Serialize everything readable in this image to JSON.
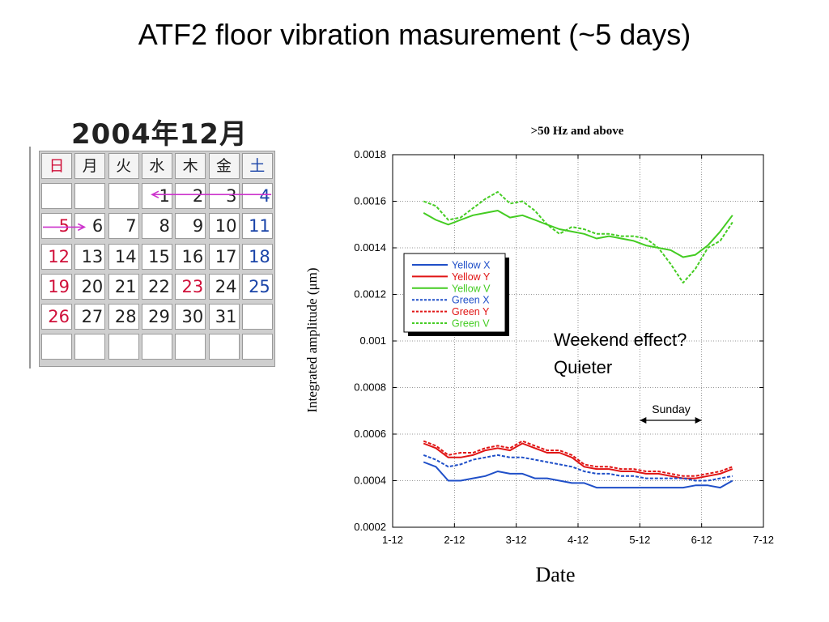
{
  "slide": {
    "title": "ATF2 floor vibration masurement (~5 days)"
  },
  "calendar": {
    "title": "2004年12月",
    "weekdays": [
      "日",
      "月",
      "火",
      "水",
      "木",
      "金",
      "土"
    ],
    "weeks": [
      [
        "",
        "",
        "",
        "1",
        "2",
        "3",
        "4"
      ],
      [
        "5",
        "6",
        "7",
        "8",
        "9",
        "10",
        "11"
      ],
      [
        "12",
        "13",
        "14",
        "15",
        "16",
        "17",
        "18"
      ],
      [
        "19",
        "20",
        "21",
        "22",
        "23",
        "24",
        "25"
      ],
      [
        "26",
        "27",
        "28",
        "29",
        "30",
        "31",
        ""
      ],
      [
        "",
        "",
        "",
        "",
        "",
        "",
        ""
      ]
    ],
    "holidays": [
      "23"
    ],
    "colors": {
      "sunday": "#d0103a",
      "saturday": "#1a44a8",
      "arrow": "#cc33cc"
    }
  },
  "chart_data": {
    "type": "line",
    "title": ">50 Hz and above",
    "xlabel": "Date",
    "ylabel": "Integrated amplitude (μm)",
    "x_ticks": [
      "1-12",
      "2-12",
      "3-12",
      "4-12",
      "5-12",
      "6-12",
      "7-12"
    ],
    "y_ticks": [
      "0.0002",
      "0.0004",
      "0.0006",
      "0.0008",
      "0.001",
      "0.0012",
      "0.0014",
      "0.0016",
      "0.0018"
    ],
    "ylim": [
      0.0002,
      0.0018
    ],
    "grid": true,
    "legend_position": "upper-left",
    "x": [
      1.5,
      1.7,
      1.9,
      2.1,
      2.3,
      2.5,
      2.7,
      2.9,
      3.1,
      3.3,
      3.5,
      3.7,
      3.9,
      4.1,
      4.3,
      4.5,
      4.7,
      4.9,
      5.1,
      5.3,
      5.5,
      5.7,
      5.9,
      6.1,
      6.3,
      6.5
    ],
    "series": [
      {
        "name": "Yellow X",
        "color": "#1f4fc8",
        "dash": "solid",
        "values": [
          0.00048,
          0.00046,
          0.0004,
          0.0004,
          0.00041,
          0.00042,
          0.00044,
          0.00043,
          0.00043,
          0.00041,
          0.00041,
          0.0004,
          0.00039,
          0.00039,
          0.00037,
          0.00037,
          0.00037,
          0.00037,
          0.00037,
          0.00037,
          0.00037,
          0.00037,
          0.00038,
          0.00038,
          0.00037,
          0.0004
        ]
      },
      {
        "name": "Yellow Y",
        "color": "#e01414",
        "dash": "solid",
        "values": [
          0.00056,
          0.00054,
          0.0005,
          0.0005,
          0.00051,
          0.00053,
          0.00054,
          0.00053,
          0.00056,
          0.00054,
          0.00052,
          0.00052,
          0.0005,
          0.00046,
          0.00045,
          0.00045,
          0.00044,
          0.00044,
          0.00043,
          0.00043,
          0.00042,
          0.00041,
          0.00041,
          0.00042,
          0.00043,
          0.00045
        ]
      },
      {
        "name": "Yellow V",
        "color": "#44cc22",
        "dash": "solid",
        "values": [
          0.00155,
          0.00152,
          0.0015,
          0.00152,
          0.00154,
          0.00155,
          0.00156,
          0.00153,
          0.00154,
          0.00152,
          0.0015,
          0.00148,
          0.00147,
          0.00146,
          0.00144,
          0.00145,
          0.00144,
          0.00143,
          0.00141,
          0.0014,
          0.00139,
          0.00136,
          0.00137,
          0.00141,
          0.00147,
          0.00154
        ]
      },
      {
        "name": "Green X",
        "color": "#1f4fc8",
        "dash": "4,2",
        "values": [
          0.00051,
          0.00049,
          0.00046,
          0.00047,
          0.00049,
          0.0005,
          0.00051,
          0.0005,
          0.0005,
          0.00049,
          0.00048,
          0.00047,
          0.00046,
          0.00044,
          0.00043,
          0.00043,
          0.00042,
          0.00042,
          0.00041,
          0.00041,
          0.00041,
          0.00041,
          0.0004,
          0.0004,
          0.00041,
          0.00042
        ]
      },
      {
        "name": "Green Y",
        "color": "#e01414",
        "dash": "4,2",
        "values": [
          0.00057,
          0.00055,
          0.00051,
          0.00052,
          0.00052,
          0.00054,
          0.00055,
          0.00054,
          0.00057,
          0.00055,
          0.00053,
          0.00053,
          0.00051,
          0.00047,
          0.00046,
          0.00046,
          0.00045,
          0.00045,
          0.00044,
          0.00044,
          0.00043,
          0.00042,
          0.00042,
          0.00043,
          0.00044,
          0.00046
        ]
      },
      {
        "name": "Green V",
        "color": "#44cc22",
        "dash": "4,2",
        "values": [
          0.0016,
          0.00158,
          0.00152,
          0.00153,
          0.00157,
          0.00161,
          0.00164,
          0.00159,
          0.0016,
          0.00156,
          0.0015,
          0.00146,
          0.00149,
          0.00148,
          0.00146,
          0.00146,
          0.00145,
          0.00145,
          0.00144,
          0.0014,
          0.00133,
          0.00125,
          0.00131,
          0.0014,
          0.00143,
          0.00151
        ]
      }
    ],
    "annotations": {
      "note_line1": "Weekend effect?",
      "note_line2": "Quieter",
      "sunday_label": "Sunday",
      "sunday_range": [
        5.0,
        6.0
      ]
    }
  }
}
